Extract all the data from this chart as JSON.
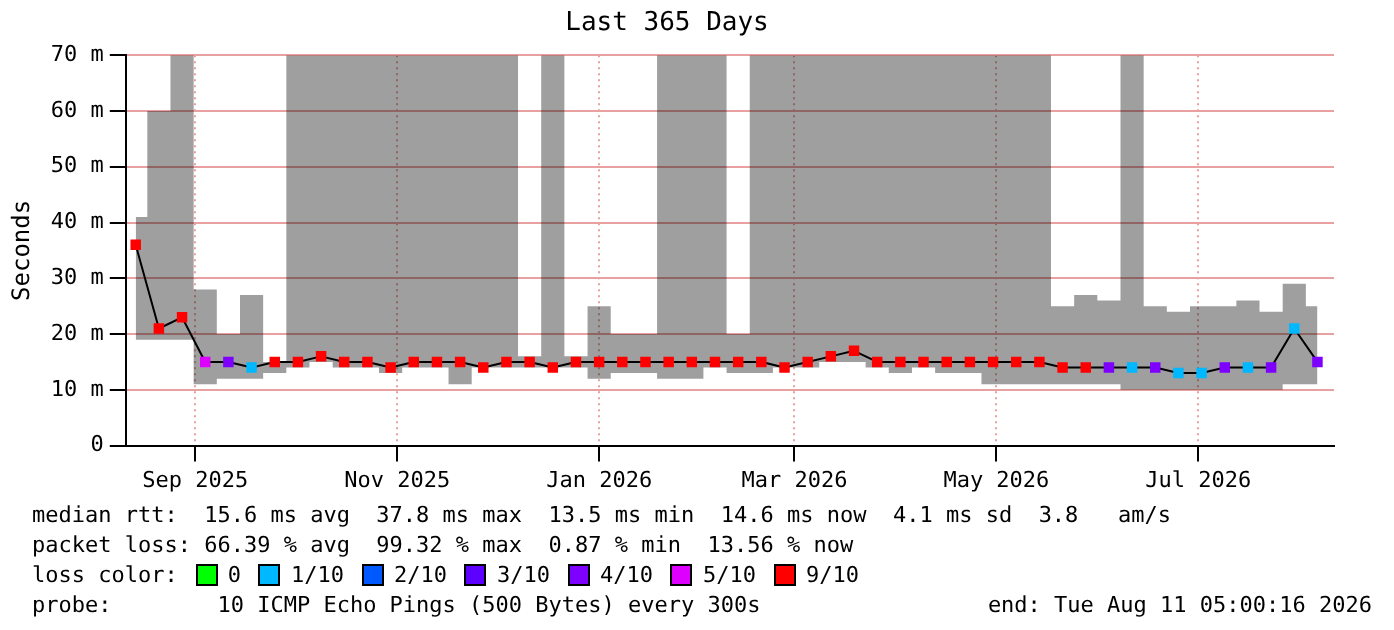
{
  "chart_data": {
    "type": "line",
    "title": "Last 365 Days",
    "ylabel": "Seconds",
    "x": [
      "2025-08-14",
      "2025-08-21",
      "2025-08-28",
      "2025-09-04",
      "2025-09-11",
      "2025-09-18",
      "2025-09-25",
      "2025-10-02",
      "2025-10-09",
      "2025-10-16",
      "2025-10-23",
      "2025-10-30",
      "2025-11-06",
      "2025-11-13",
      "2025-11-20",
      "2025-11-27",
      "2025-12-04",
      "2025-12-11",
      "2025-12-18",
      "2025-12-25",
      "2026-01-01",
      "2026-01-08",
      "2026-01-15",
      "2026-01-22",
      "2026-01-29",
      "2026-02-05",
      "2026-02-12",
      "2026-02-19",
      "2026-02-26",
      "2026-03-05",
      "2026-03-12",
      "2026-03-19",
      "2026-03-26",
      "2026-04-02",
      "2026-04-09",
      "2026-04-16",
      "2026-04-23",
      "2026-04-30",
      "2026-05-07",
      "2026-05-14",
      "2026-05-21",
      "2026-05-28",
      "2026-06-04",
      "2026-06-11",
      "2026-06-18",
      "2026-06-25",
      "2026-07-02",
      "2026-07-09",
      "2026-07-16",
      "2026-07-23",
      "2026-07-30",
      "2026-08-06"
    ],
    "series": [
      {
        "color": "#000000",
        "marker": "none",
        "values": [
          36,
          21,
          23,
          15,
          15,
          14,
          15,
          15,
          16,
          15,
          15,
          14,
          15,
          15,
          15,
          14,
          15,
          15,
          14,
          15,
          15,
          15,
          15,
          15,
          15,
          15,
          15,
          15,
          14,
          15,
          16,
          17,
          15,
          15,
          15,
          15,
          15,
          15,
          15,
          15,
          14,
          14,
          14,
          14,
          14,
          13,
          13,
          14,
          14,
          14,
          21,
          15
        ],
        "lower": [
          19,
          19,
          19,
          11,
          12,
          12,
          13,
          14,
          15,
          14,
          14,
          13,
          14,
          14,
          11,
          14,
          14,
          14,
          14,
          14,
          12,
          13,
          13,
          12,
          12,
          14,
          13,
          13,
          14,
          14,
          15,
          15,
          14,
          13,
          14,
          13,
          13,
          11,
          11,
          11,
          11,
          11,
          11,
          10,
          10,
          10,
          10,
          10,
          10,
          10,
          11,
          11
        ],
        "upper": [
          41,
          60,
          70,
          28,
          20,
          27,
          15,
          70,
          70,
          70,
          70,
          70,
          70,
          70,
          70,
          70,
          70,
          16,
          70,
          16,
          25,
          20,
          20,
          70,
          70,
          70,
          20,
          70,
          70,
          70,
          70,
          70,
          70,
          70,
          70,
          70,
          70,
          70,
          70,
          70,
          25,
          27,
          26,
          70,
          25,
          24,
          25,
          25,
          26,
          24,
          29,
          25
        ]
      },
      {
        "type": "scatter",
        "name": "0",
        "color": "#00ff00",
        "values": [
          null,
          null,
          null,
          null,
          null,
          null,
          null,
          null,
          null,
          null,
          null,
          null,
          null,
          null,
          null,
          null,
          null,
          null,
          null,
          null,
          null,
          null,
          null,
          null,
          null,
          null,
          null,
          null,
          null,
          null,
          null,
          null,
          null,
          null,
          null,
          null,
          null,
          null,
          null,
          null,
          null,
          null,
          null,
          null,
          null,
          null,
          null,
          null,
          null,
          null,
          null,
          null
        ]
      },
      {
        "type": "scatter",
        "name": "1/10",
        "color": "#00b8ff",
        "values": [
          null,
          null,
          null,
          null,
          null,
          14,
          null,
          null,
          null,
          null,
          null,
          null,
          null,
          null,
          null,
          null,
          null,
          null,
          null,
          null,
          null,
          null,
          null,
          null,
          null,
          null,
          null,
          null,
          null,
          null,
          null,
          null,
          null,
          null,
          null,
          null,
          null,
          null,
          null,
          null,
          null,
          null,
          null,
          14,
          null,
          13,
          13,
          null,
          14,
          null,
          21,
          null
        ]
      },
      {
        "type": "scatter",
        "name": "2/10",
        "color": "#0059ff",
        "values": [
          null,
          null,
          null,
          null,
          null,
          null,
          null,
          null,
          null,
          null,
          null,
          null,
          null,
          null,
          null,
          null,
          null,
          null,
          null,
          null,
          null,
          null,
          null,
          null,
          null,
          null,
          null,
          null,
          null,
          null,
          null,
          null,
          null,
          null,
          null,
          null,
          null,
          null,
          null,
          null,
          null,
          null,
          null,
          null,
          null,
          null,
          null,
          null,
          null,
          null,
          null,
          null
        ]
      },
      {
        "type": "scatter",
        "name": "3/10",
        "color": "#5e00ff",
        "values": [
          null,
          null,
          null,
          null,
          null,
          null,
          null,
          null,
          null,
          null,
          null,
          null,
          null,
          null,
          null,
          null,
          null,
          null,
          null,
          null,
          null,
          null,
          null,
          null,
          null,
          null,
          null,
          null,
          null,
          null,
          null,
          null,
          null,
          null,
          null,
          null,
          null,
          null,
          null,
          null,
          null,
          null,
          null,
          null,
          null,
          null,
          null,
          null,
          null,
          null,
          null,
          null
        ]
      },
      {
        "type": "scatter",
        "name": "4/10",
        "color": "#7e00ff",
        "values": [
          null,
          null,
          null,
          null,
          15,
          null,
          null,
          null,
          null,
          null,
          null,
          null,
          null,
          null,
          null,
          null,
          null,
          null,
          null,
          null,
          null,
          null,
          null,
          null,
          null,
          null,
          null,
          null,
          null,
          null,
          null,
          null,
          null,
          null,
          null,
          null,
          null,
          null,
          null,
          null,
          null,
          null,
          14,
          null,
          14,
          null,
          null,
          14,
          null,
          14,
          null,
          15
        ]
      },
      {
        "type": "scatter",
        "name": "5/10",
        "color": "#dd00ff",
        "values": [
          null,
          null,
          null,
          15,
          null,
          null,
          null,
          null,
          null,
          null,
          null,
          null,
          null,
          null,
          null,
          null,
          null,
          null,
          null,
          null,
          null,
          null,
          null,
          null,
          null,
          null,
          null,
          null,
          null,
          null,
          null,
          null,
          null,
          null,
          null,
          null,
          null,
          null,
          null,
          null,
          null,
          null,
          null,
          null,
          null,
          null,
          null,
          null,
          null,
          null,
          null,
          null
        ]
      },
      {
        "type": "scatter",
        "name": "9/10",
        "color": "#ff0000",
        "values": [
          36,
          21,
          23,
          null,
          null,
          null,
          15,
          15,
          16,
          15,
          15,
          14,
          15,
          15,
          15,
          14,
          15,
          15,
          14,
          15,
          15,
          15,
          15,
          15,
          15,
          15,
          15,
          15,
          14,
          15,
          16,
          17,
          15,
          15,
          15,
          15,
          15,
          15,
          15,
          15,
          14,
          14,
          null,
          null,
          null,
          null,
          null,
          null,
          null,
          null,
          null,
          null
        ]
      }
    ],
    "xlim": [
      "2025-08-11",
      "2026-08-11"
    ],
    "xticks": [
      {
        "value": "2025-09-01",
        "label": "Sep 2025"
      },
      {
        "value": "2025-11-01",
        "label": "Nov 2025"
      },
      {
        "value": "2026-01-01",
        "label": "Jan 2026"
      },
      {
        "value": "2026-03-01",
        "label": "Mar 2026"
      },
      {
        "value": "2026-05-01",
        "label": "May 2026"
      },
      {
        "value": "2026-07-01",
        "label": "Jul 2026"
      }
    ],
    "ylim": [
      0,
      70
    ],
    "yticks": [
      0,
      {
        "value": 10,
        "label": "10 m"
      },
      {
        "value": 20,
        "label": "20 m"
      },
      {
        "value": 30,
        "label": "30 m"
      },
      {
        "value": 40,
        "label": "40 m"
      },
      {
        "value": 50,
        "label": "50 m"
      },
      {
        "value": 60,
        "label": "60 m"
      },
      {
        "value": 70,
        "label": "70 m"
      }
    ],
    "grid": true,
    "marker": "square",
    "legend": "bottom",
    "legend_title": "loss color:",
    "annotations": [
      "median rtt:  15.6 ms avg  37.8 ms max  13.5 ms min  14.6 ms now  4.1 ms sd  3.8   am/s",
      "packet loss: 66.39 % avg  99.32 % max  0.87 % min  13.56 % now",
      "probe:        10 ICMP Echo Pings (500 Bytes) every 300s",
      "end: Tue Aug 11 05:00:16 2026"
    ]
  }
}
